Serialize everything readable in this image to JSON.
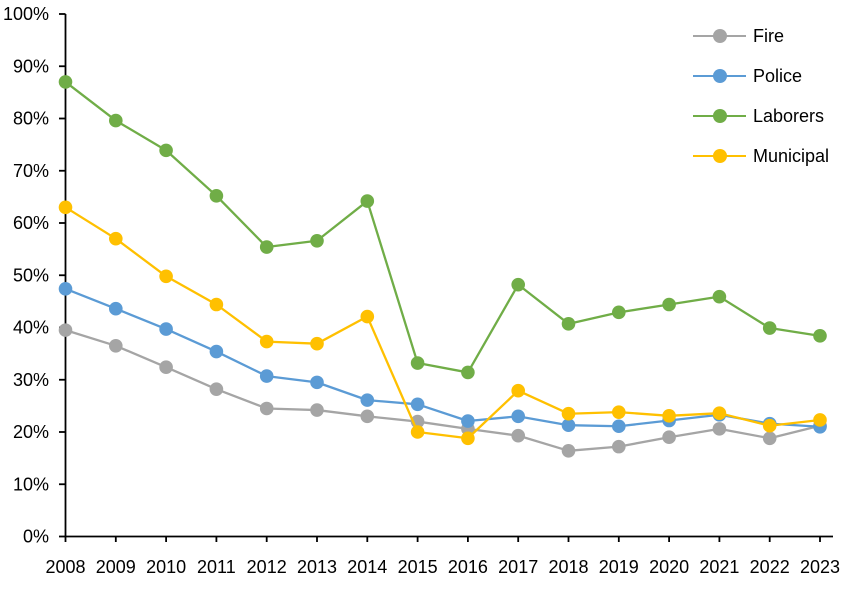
{
  "page": {
    "background": "#FFFFFF",
    "text_color": "#000000",
    "axis_color": "#000000"
  },
  "chart_data": {
    "type": "line",
    "title": "",
    "xlabel": "",
    "ylabel": "",
    "grid": false,
    "legend_position": "top-right",
    "ylim": [
      0,
      100
    ],
    "y_tick_step": 10,
    "y_tick_labels": [
      "0%",
      "10%",
      "20%",
      "30%",
      "40%",
      "50%",
      "60%",
      "70%",
      "80%",
      "90%",
      "100%"
    ],
    "categories": [
      "2008",
      "2009",
      "2010",
      "2011",
      "2012",
      "2013",
      "2014",
      "2015",
      "2016",
      "2017",
      "2018",
      "2019",
      "2020",
      "2021",
      "2022",
      "2023"
    ],
    "series": [
      {
        "name": "Fire",
        "color": "#A5A5A5",
        "values": [
          39.5,
          36.5,
          32.4,
          28.2,
          24.5,
          24.2,
          23.0,
          22.0,
          20.6,
          19.3,
          16.4,
          17.2,
          19.0,
          20.6,
          18.8,
          21.2
        ]
      },
      {
        "name": "Police",
        "color": "#5B9BD5",
        "values": [
          47.4,
          43.6,
          39.7,
          35.4,
          30.7,
          29.5,
          26.1,
          25.3,
          22.1,
          23.0,
          21.3,
          21.1,
          22.2,
          23.3,
          21.6,
          21.0
        ]
      },
      {
        "name": "Laborers",
        "color": "#70AD47",
        "values": [
          87.0,
          79.6,
          73.9,
          65.2,
          55.4,
          56.6,
          64.2,
          33.2,
          31.4,
          48.2,
          40.7,
          42.9,
          44.4,
          45.9,
          39.9,
          38.4
        ]
      },
      {
        "name": "Municipal",
        "color": "#FFC000",
        "values": [
          63.0,
          57.0,
          49.8,
          44.4,
          37.3,
          36.9,
          42.1,
          20.0,
          18.8,
          27.9,
          23.5,
          23.8,
          23.1,
          23.6,
          21.2,
          22.3
        ]
      }
    ]
  }
}
